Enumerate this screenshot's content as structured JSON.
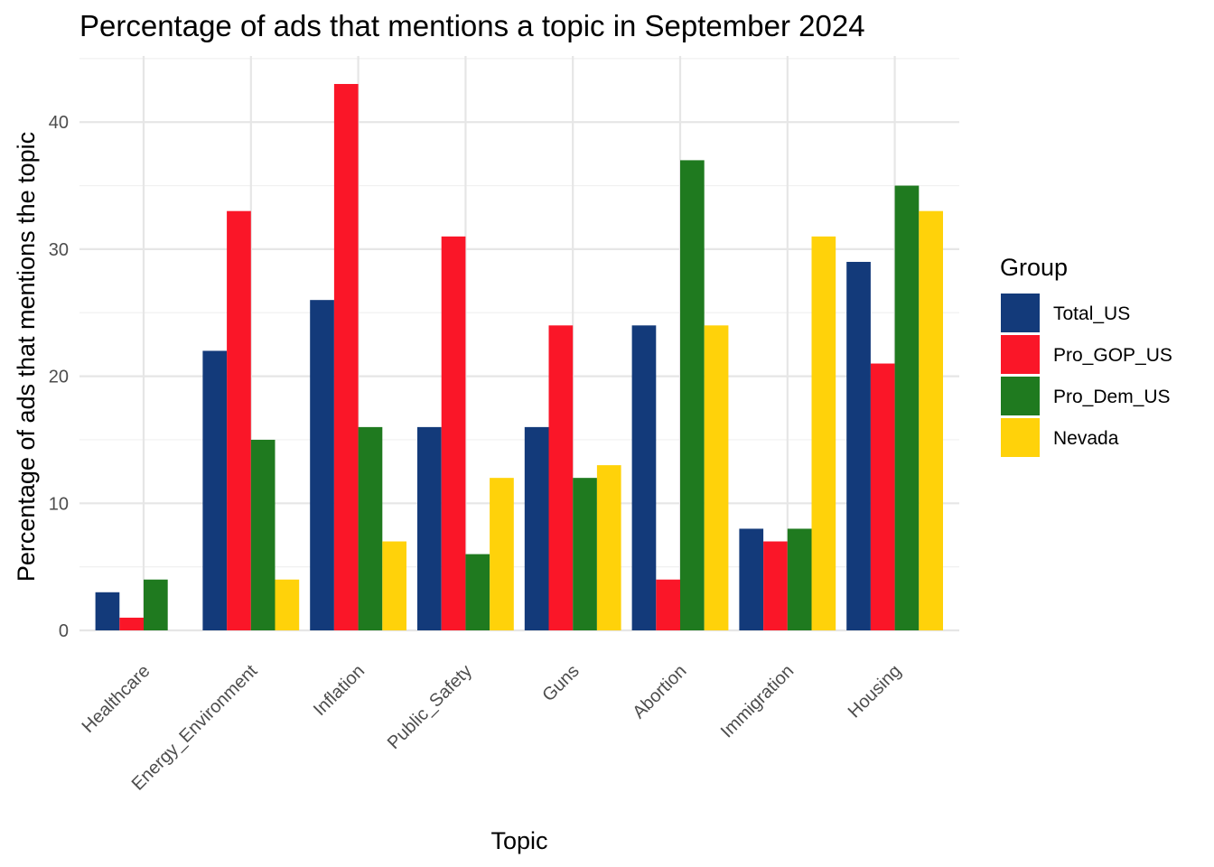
{
  "chart_data": {
    "type": "bar",
    "title": "Percentage of ads that mentions a topic in September 2024",
    "xlabel": "Topic",
    "ylabel": "Percentage of ads that mentions the topic",
    "categories": [
      "Healthcare",
      "Energy_Environment",
      "Inflation",
      "Public_Safety",
      "Guns",
      "Abortion",
      "Immigration",
      "Housing"
    ],
    "series": [
      {
        "name": "Total_US",
        "color": "#133a7a",
        "values": [
          3,
          22,
          26,
          16,
          16,
          24,
          8,
          29
        ]
      },
      {
        "name": "Pro_GOP_US",
        "color": "#fa1628",
        "values": [
          1,
          33,
          43,
          31,
          24,
          4,
          7,
          21
        ]
      },
      {
        "name": "Pro_Dem_US",
        "color": "#1f7a1f",
        "values": [
          4,
          15,
          16,
          6,
          12,
          37,
          8,
          35
        ]
      },
      {
        "name": "Nevada",
        "color": "#ffd20a",
        "values": [
          0,
          4,
          7,
          12,
          13,
          24,
          31,
          33
        ]
      }
    ],
    "yticks": [
      0,
      10,
      20,
      30,
      40
    ],
    "ylim": [
      0,
      45
    ],
    "grid": true,
    "legend": {
      "title": "Group",
      "position": "right"
    }
  }
}
